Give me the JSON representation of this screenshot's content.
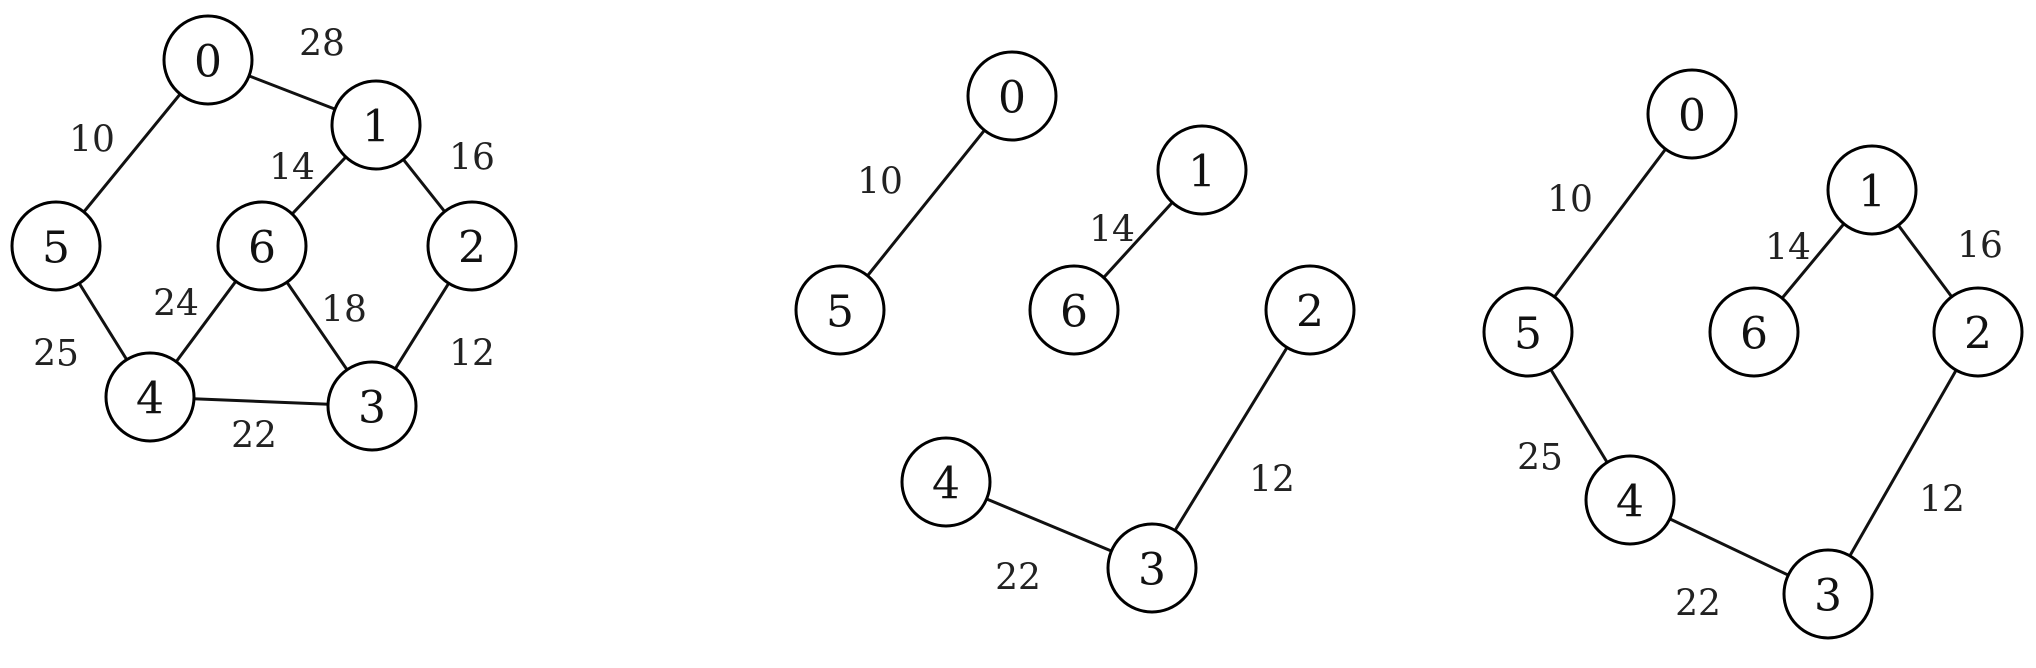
{
  "graphs": [
    {
      "id": "original-graph",
      "nodes": [
        "0",
        "1",
        "2",
        "3",
        "4",
        "5",
        "6"
      ],
      "edges": [
        {
          "from": "0",
          "to": "1",
          "weight": "28"
        },
        {
          "from": "0",
          "to": "5",
          "weight": "10"
        },
        {
          "from": "1",
          "to": "6",
          "weight": "14"
        },
        {
          "from": "1",
          "to": "2",
          "weight": "16"
        },
        {
          "from": "5",
          "to": "4",
          "weight": "25"
        },
        {
          "from": "6",
          "to": "4",
          "weight": "24"
        },
        {
          "from": "6",
          "to": "3",
          "weight": "18"
        },
        {
          "from": "2",
          "to": "3",
          "weight": "12"
        },
        {
          "from": "4",
          "to": "3",
          "weight": "22"
        }
      ]
    },
    {
      "id": "partial-forest",
      "nodes": [
        "0",
        "1",
        "2",
        "3",
        "4",
        "5",
        "6"
      ],
      "edges": [
        {
          "from": "0",
          "to": "5",
          "weight": "10"
        },
        {
          "from": "1",
          "to": "6",
          "weight": "14"
        },
        {
          "from": "2",
          "to": "3",
          "weight": "12"
        },
        {
          "from": "4",
          "to": "3",
          "weight": "22"
        }
      ]
    },
    {
      "id": "minimum-spanning-tree",
      "nodes": [
        "0",
        "1",
        "2",
        "3",
        "4",
        "5",
        "6"
      ],
      "edges": [
        {
          "from": "0",
          "to": "5",
          "weight": "10"
        },
        {
          "from": "1",
          "to": "6",
          "weight": "14"
        },
        {
          "from": "1",
          "to": "2",
          "weight": "16"
        },
        {
          "from": "5",
          "to": "4",
          "weight": "25"
        },
        {
          "from": "2",
          "to": "3",
          "weight": "12"
        },
        {
          "from": "4",
          "to": "3",
          "weight": "22"
        }
      ]
    }
  ]
}
